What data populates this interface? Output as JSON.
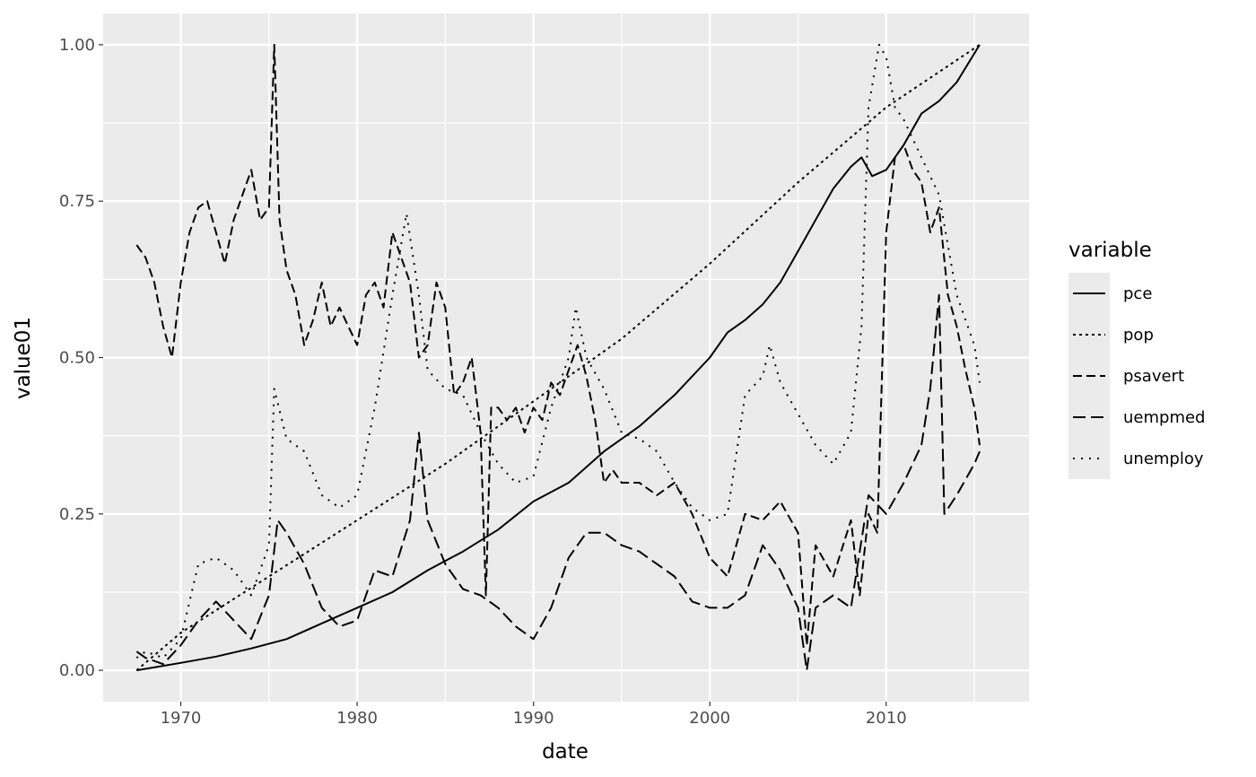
{
  "chart_data": {
    "type": "line",
    "xlabel": "date",
    "ylabel": "value01",
    "xlim": [
      1965.6,
      2018.1
    ],
    "ylim": [
      -0.05,
      1.05
    ],
    "x_ticks": [
      1970,
      1980,
      1990,
      2000,
      2010
    ],
    "x_tick_labels": [
      "1970",
      "1980",
      "1990",
      "2000",
      "2010"
    ],
    "y_ticks": [
      0,
      0.25,
      0.5,
      0.75,
      1
    ],
    "y_tick_labels": [
      "0.00",
      "0.25",
      "0.50",
      "0.75",
      "1.00"
    ],
    "grid": true,
    "legend": {
      "title": "variable",
      "position": "right"
    },
    "colors": {
      "panel": "#ebebeb",
      "grid": "#ffffff",
      "line": "#000000"
    },
    "series": [
      {
        "name": "pce",
        "linestyle": "solid",
        "x": [
          1967.5,
          1970,
          1972,
          1974,
          1976,
          1978,
          1980,
          1982,
          1984,
          1986,
          1988,
          1990,
          1992,
          1994,
          1996,
          1998,
          2000,
          2001,
          2002,
          2003,
          2004,
          2005,
          2006,
          2007,
          2008,
          2008.6,
          2009.2,
          2010,
          2011,
          2012,
          2013,
          2014,
          2015.3
        ],
        "y": [
          0.0,
          0.012,
          0.022,
          0.035,
          0.05,
          0.075,
          0.1,
          0.125,
          0.16,
          0.19,
          0.225,
          0.27,
          0.3,
          0.35,
          0.39,
          0.44,
          0.5,
          0.54,
          0.56,
          0.585,
          0.62,
          0.67,
          0.72,
          0.77,
          0.805,
          0.82,
          0.79,
          0.8,
          0.84,
          0.89,
          0.91,
          0.94,
          1.0
        ]
      },
      {
        "name": "pop",
        "linestyle": "dotted",
        "x": [
          1967.5,
          1970,
          1975,
          1980,
          1985,
          1990,
          1995,
          2000,
          2005,
          2010,
          2015.3
        ],
        "y": [
          0.0,
          0.06,
          0.15,
          0.24,
          0.33,
          0.43,
          0.53,
          0.65,
          0.78,
          0.9,
          1.0
        ]
      },
      {
        "name": "psavert",
        "linestyle": "dashed",
        "x": [
          1967.5,
          1968,
          1968.5,
          1969,
          1969.5,
          1970,
          1970.5,
          1971,
          1971.5,
          1972,
          1972.5,
          1973,
          1973.5,
          1974,
          1974.5,
          1975,
          1975.3,
          1975.6,
          1976,
          1976.5,
          1977,
          1977.5,
          1978,
          1978.5,
          1979,
          1979.5,
          1980,
          1980.5,
          1981,
          1981.5,
          1982,
          1982.5,
          1983,
          1983.5,
          1984,
          1984.5,
          1985,
          1985.5,
          1986,
          1986.5,
          1987,
          1987.3,
          1987.6,
          1988,
          1988.5,
          1989,
          1989.5,
          1990,
          1990.5,
          1991,
          1991.5,
          1992,
          1992.5,
          1993,
          1993.5,
          1994,
          1994.5,
          1995,
          1996,
          1997,
          1998,
          1999,
          2000,
          2001,
          2002,
          2003,
          2004,
          2005,
          2005.5,
          2006,
          2007,
          2008,
          2008.5,
          2009,
          2009.5,
          2010,
          2010.5,
          2011,
          2011.5,
          2012,
          2012.5,
          2013,
          2013.5,
          2014,
          2014.5,
          2015,
          2015.3
        ],
        "y": [
          0.68,
          0.66,
          0.62,
          0.55,
          0.5,
          0.62,
          0.7,
          0.74,
          0.75,
          0.7,
          0.65,
          0.72,
          0.76,
          0.8,
          0.72,
          0.74,
          1.0,
          0.72,
          0.64,
          0.6,
          0.52,
          0.56,
          0.62,
          0.55,
          0.58,
          0.55,
          0.52,
          0.6,
          0.62,
          0.58,
          0.7,
          0.66,
          0.62,
          0.5,
          0.52,
          0.62,
          0.58,
          0.44,
          0.46,
          0.5,
          0.38,
          0.12,
          0.42,
          0.42,
          0.4,
          0.42,
          0.38,
          0.42,
          0.4,
          0.46,
          0.44,
          0.48,
          0.52,
          0.47,
          0.4,
          0.3,
          0.32,
          0.3,
          0.3,
          0.28,
          0.3,
          0.25,
          0.18,
          0.15,
          0.25,
          0.24,
          0.27,
          0.22,
          0.04,
          0.2,
          0.15,
          0.24,
          0.12,
          0.25,
          0.22,
          0.7,
          0.82,
          0.84,
          0.8,
          0.78,
          0.7,
          0.74,
          0.6,
          0.55,
          0.48,
          0.42,
          0.36
        ]
      },
      {
        "name": "uempmed",
        "linestyle": "longdash",
        "x": [
          1967.5,
          1968,
          1969,
          1970,
          1971,
          1972,
          1973,
          1974,
          1975,
          1975.5,
          1976,
          1977,
          1978,
          1979,
          1980,
          1981,
          1982,
          1983,
          1983.5,
          1984,
          1985,
          1986,
          1987,
          1988,
          1989,
          1990,
          1991,
          1992,
          1993,
          1994,
          1995,
          1996,
          1997,
          1998,
          1999,
          2000,
          2001,
          2002,
          2003,
          2004,
          2005,
          2005.5,
          2006,
          2007,
          2008,
          2009,
          2010,
          2011,
          2012,
          2012.5,
          2013,
          2013.3,
          2014,
          2015,
          2015.3
        ],
        "y": [
          0.03,
          0.02,
          0.01,
          0.04,
          0.08,
          0.11,
          0.08,
          0.05,
          0.12,
          0.24,
          0.22,
          0.17,
          0.1,
          0.07,
          0.08,
          0.16,
          0.15,
          0.24,
          0.38,
          0.24,
          0.17,
          0.13,
          0.12,
          0.1,
          0.07,
          0.05,
          0.1,
          0.18,
          0.22,
          0.22,
          0.2,
          0.19,
          0.17,
          0.15,
          0.11,
          0.1,
          0.1,
          0.12,
          0.2,
          0.16,
          0.1,
          0.0,
          0.1,
          0.12,
          0.1,
          0.28,
          0.25,
          0.3,
          0.36,
          0.45,
          0.6,
          0.25,
          0.28,
          0.33,
          0.35
        ]
      },
      {
        "name": "unemploy",
        "linestyle": "dotted-sparse",
        "x": [
          1967.5,
          1968,
          1969,
          1970,
          1971,
          1972,
          1973,
          1974,
          1975,
          1975.3,
          1976,
          1977,
          1978,
          1979,
          1980,
          1981,
          1982,
          1982.8,
          1983.5,
          1984,
          1985,
          1986,
          1987,
          1988,
          1989,
          1990,
          1991,
          1992,
          1992.4,
          1993,
          1994,
          1995,
          1996,
          1997,
          1998,
          1999,
          2000,
          2001,
          2002,
          2003,
          2003.4,
          2004,
          2005,
          2006,
          2007,
          2008,
          2008.6,
          2009,
          2009.6,
          2010,
          2010.5,
          2011,
          2012,
          2013,
          2014,
          2015,
          2015.3
        ],
        "y": [
          0.02,
          0.03,
          0.02,
          0.05,
          0.17,
          0.18,
          0.16,
          0.12,
          0.2,
          0.45,
          0.37,
          0.35,
          0.28,
          0.26,
          0.28,
          0.42,
          0.6,
          0.73,
          0.6,
          0.48,
          0.45,
          0.44,
          0.38,
          0.33,
          0.3,
          0.31,
          0.42,
          0.5,
          0.58,
          0.5,
          0.45,
          0.38,
          0.37,
          0.35,
          0.3,
          0.26,
          0.24,
          0.25,
          0.44,
          0.47,
          0.52,
          0.46,
          0.41,
          0.36,
          0.33,
          0.38,
          0.55,
          0.9,
          1.0,
          0.98,
          0.9,
          0.88,
          0.82,
          0.76,
          0.6,
          0.52,
          0.46
        ]
      }
    ]
  }
}
